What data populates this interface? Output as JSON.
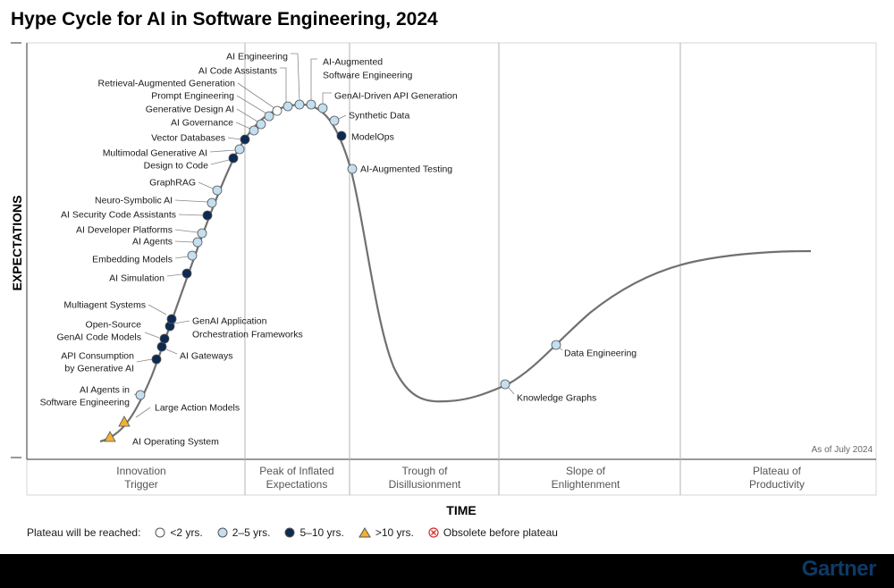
{
  "title": "Hype Cycle for AI in Software Engineering, 2024",
  "y_axis_title": "EXPECTATIONS",
  "x_axis_title": "TIME",
  "as_of": "As of July 2024",
  "phases": [
    {
      "lines": [
        "Innovation",
        "Trigger"
      ]
    },
    {
      "lines": [
        "Peak of Inflated",
        "Expectations"
      ]
    },
    {
      "lines": [
        "Trough of",
        "Disillusionment"
      ]
    },
    {
      "lines": [
        "Slope of",
        "Enlightenment"
      ]
    },
    {
      "lines": [
        "Plateau of",
        "Productivity"
      ]
    }
  ],
  "legend": {
    "prefix": "Plateau will be reached:",
    "items": [
      {
        "key": "lt2",
        "label": "<2 yrs."
      },
      {
        "key": "2to5",
        "label": "2–5 yrs."
      },
      {
        "key": "5to10",
        "label": "5–10 yrs."
      },
      {
        "key": "gt10",
        "label": ">10 yrs."
      },
      {
        "key": "obsolete",
        "label": "Obsolete before plateau"
      }
    ]
  },
  "colors": {
    "lt2": "#ffffff",
    "2to5": "#c3dff0",
    "5to10": "#0c2a52",
    "gt10": "#f2b134",
    "obsolete": "#d62a2a",
    "curve": "#707070"
  },
  "technologies": [
    {
      "name": "AI Operating System",
      "plateau": "gt10"
    },
    {
      "name": "Large Action Models",
      "plateau": "gt10"
    },
    {
      "name": "AI Agents in Software Engineering",
      "plateau": "2to5"
    },
    {
      "name": "API Consumption by Generative AI",
      "plateau": "5to10"
    },
    {
      "name": "AI Gateways",
      "plateau": "5to10"
    },
    {
      "name": "Open-Source GenAI Code Models",
      "plateau": "5to10"
    },
    {
      "name": "GenAI Application Orchestration Frameworks",
      "plateau": "5to10"
    },
    {
      "name": "Multiagent Systems",
      "plateau": "5to10"
    },
    {
      "name": "AI Simulation",
      "plateau": "5to10"
    },
    {
      "name": "Embedding Models",
      "plateau": "2to5"
    },
    {
      "name": "AI Agents",
      "plateau": "2to5"
    },
    {
      "name": "AI Developer Platforms",
      "plateau": "2to5"
    },
    {
      "name": "AI Security Code Assistants",
      "plateau": "5to10"
    },
    {
      "name": "Neuro-Symbolic AI",
      "plateau": "2to5"
    },
    {
      "name": "GraphRAG",
      "plateau": "2to5"
    },
    {
      "name": "Design to Code",
      "plateau": "5to10"
    },
    {
      "name": "Multimodal Generative AI",
      "plateau": "2to5"
    },
    {
      "name": "Vector Databases",
      "plateau": "5to10"
    },
    {
      "name": "AI Governance",
      "plateau": "2to5"
    },
    {
      "name": "Generative Design AI",
      "plateau": "2to5"
    },
    {
      "name": "Prompt Engineering",
      "plateau": "2to5"
    },
    {
      "name": "Retrieval-Augmented Generation",
      "plateau": "lt2"
    },
    {
      "name": "AI Code Assistants",
      "plateau": "2to5"
    },
    {
      "name": "AI Engineering",
      "plateau": "2to5"
    },
    {
      "name": "AI-Augmented Software Engineering",
      "plateau": "2to5"
    },
    {
      "name": "GenAI-Driven API Generation",
      "plateau": "2to5"
    },
    {
      "name": "Synthetic Data",
      "plateau": "2to5"
    },
    {
      "name": "ModelOps",
      "plateau": "5to10"
    },
    {
      "name": "AI-Augmented Testing",
      "plateau": "2to5"
    },
    {
      "name": "Knowledge Graphs",
      "plateau": "2to5"
    },
    {
      "name": "Data Engineering",
      "plateau": "2to5"
    }
  ],
  "brand": "Gartner"
}
